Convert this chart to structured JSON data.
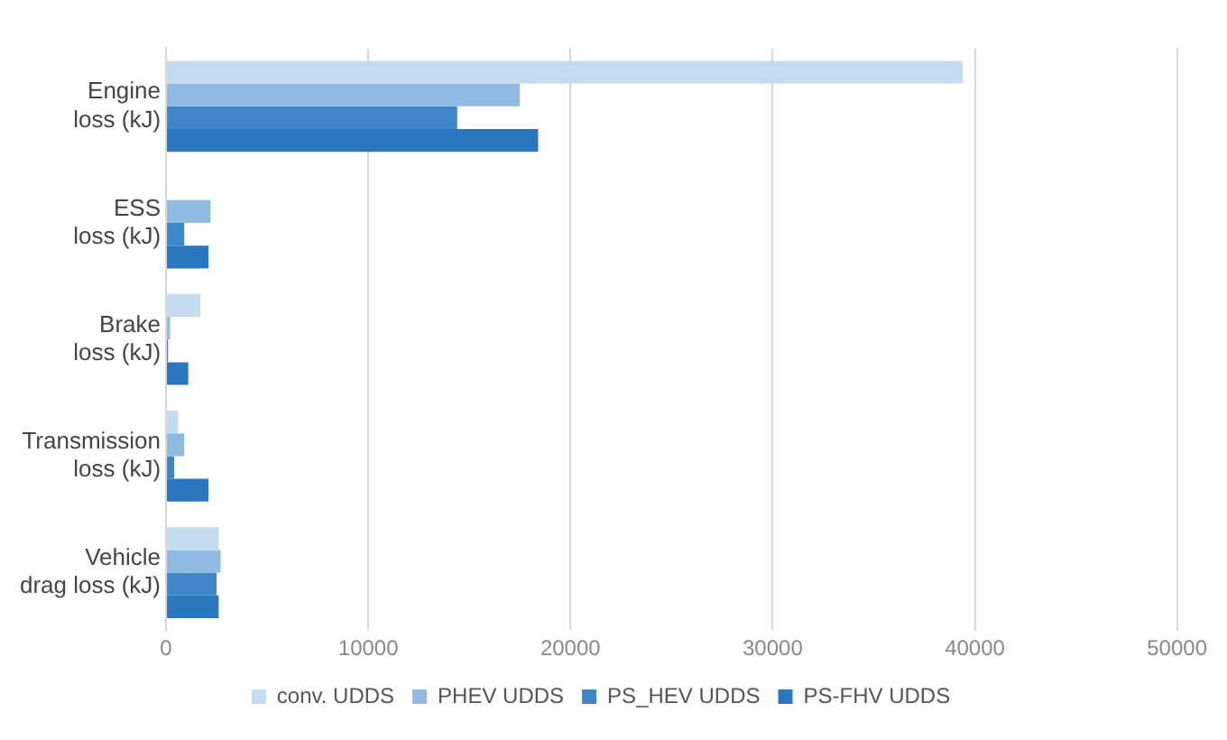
{
  "chart_data": {
    "type": "bar",
    "orientation": "horizontal",
    "categories": [
      "Engine loss (kJ)",
      "ESS loss (kJ)",
      "Brake loss (kJ)",
      "Transmission loss (kJ)",
      "Vehicle drag loss (kJ)"
    ],
    "series": [
      {
        "name": "conv. UDDS",
        "color": "#c5dcf0",
        "values": [
          39400,
          0,
          1700,
          600,
          2600
        ]
      },
      {
        "name": "PHEV UDDS",
        "color": "#8fbbe3",
        "values": [
          17500,
          2200,
          200,
          900,
          2700
        ]
      },
      {
        "name": "PS_HEV UDDS",
        "color": "#3f86c8",
        "values": [
          14400,
          900,
          100,
          400,
          2500
        ]
      },
      {
        "name": "PS-FHV UDDS",
        "color": "#2a77c0",
        "values": [
          18400,
          2100,
          1100,
          2100,
          2600
        ]
      }
    ],
    "xlim": [
      0,
      50000
    ],
    "xticks": [
      0,
      10000,
      20000,
      30000,
      40000,
      50000
    ],
    "grid": "x",
    "legend": "bottom"
  }
}
